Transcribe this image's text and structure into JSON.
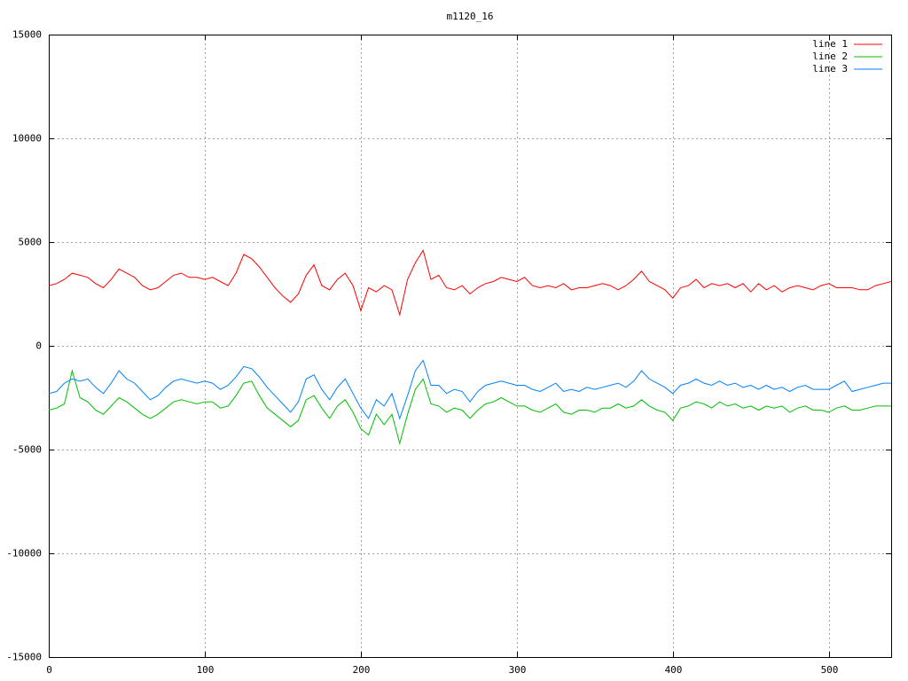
{
  "chart_data": {
    "type": "line",
    "title": "m1120_16",
    "x": [
      0,
      5,
      10,
      15,
      20,
      25,
      30,
      35,
      40,
      45,
      50,
      55,
      60,
      65,
      70,
      75,
      80,
      85,
      90,
      95,
      100,
      105,
      110,
      115,
      120,
      125,
      130,
      135,
      140,
      145,
      150,
      155,
      160,
      165,
      170,
      175,
      180,
      185,
      190,
      195,
      200,
      205,
      210,
      215,
      220,
      225,
      230,
      235,
      240,
      245,
      250,
      255,
      260,
      265,
      270,
      275,
      280,
      285,
      290,
      295,
      300,
      305,
      310,
      315,
      320,
      325,
      330,
      335,
      340,
      345,
      350,
      355,
      360,
      365,
      370,
      375,
      380,
      385,
      390,
      395,
      400,
      405,
      410,
      415,
      420,
      425,
      430,
      435,
      440,
      445,
      450,
      455,
      460,
      465,
      470,
      475,
      480,
      485,
      490,
      495,
      500,
      505,
      510,
      515,
      520,
      525,
      530,
      535,
      540
    ],
    "series": [
      {
        "name": "line 1",
        "color": "#ff0000",
        "values": [
          2900,
          3000,
          3200,
          3500,
          3400,
          3300,
          3000,
          2800,
          3200,
          3700,
          3500,
          3300,
          2900,
          2700,
          2800,
          3100,
          3400,
          3500,
          3300,
          3300,
          3200,
          3300,
          3100,
          2900,
          3500,
          4400,
          4200,
          3800,
          3300,
          2800,
          2400,
          2100,
          2500,
          3400,
          3900,
          2900,
          2700,
          3200,
          3500,
          2900,
          1700,
          2800,
          2600,
          2900,
          2700,
          1500,
          3200,
          4000,
          4600,
          3200,
          3400,
          2800,
          2700,
          2900,
          2500,
          2800,
          3000,
          3100,
          3300,
          3200,
          3100,
          3300,
          2900,
          2800,
          2900,
          2800,
          3000,
          2700,
          2800,
          2800,
          2900,
          3000,
          2900,
          2700,
          2900,
          3200,
          3600,
          3100,
          2900,
          2700,
          2300,
          2800,
          2900,
          3200,
          2800,
          3000,
          2900,
          3000,
          2800,
          3000,
          2600,
          3000,
          2700,
          2900,
          2600,
          2800,
          2900,
          2800,
          2700,
          2900,
          3000,
          2800,
          2800,
          2800,
          2700,
          2700,
          2900,
          3000,
          3100
        ]
      },
      {
        "name": "line 2",
        "color": "#00c000",
        "values": [
          -3100,
          -3000,
          -2800,
          -1200,
          -2500,
          -2700,
          -3100,
          -3300,
          -2900,
          -2500,
          -2700,
          -3000,
          -3300,
          -3500,
          -3300,
          -3000,
          -2700,
          -2600,
          -2700,
          -2800,
          -2700,
          -2700,
          -3000,
          -2900,
          -2400,
          -1800,
          -1700,
          -2400,
          -3000,
          -3300,
          -3600,
          -3900,
          -3600,
          -2600,
          -2400,
          -3000,
          -3500,
          -2900,
          -2600,
          -3200,
          -4000,
          -4300,
          -3300,
          -3800,
          -3300,
          -4700,
          -3300,
          -2100,
          -1600,
          -2800,
          -2900,
          -3200,
          -3000,
          -3100,
          -3500,
          -3100,
          -2800,
          -2700,
          -2500,
          -2700,
          -2900,
          -2900,
          -3100,
          -3200,
          -3000,
          -2800,
          -3200,
          -3300,
          -3100,
          -3100,
          -3200,
          -3000,
          -3000,
          -2800,
          -3000,
          -2900,
          -2600,
          -2900,
          -3100,
          -3200,
          -3600,
          -3000,
          -2900,
          -2700,
          -2800,
          -3000,
          -2700,
          -2900,
          -2800,
          -3000,
          -2900,
          -3100,
          -2900,
          -3000,
          -2900,
          -3200,
          -3000,
          -2900,
          -3100,
          -3100,
          -3200,
          -3000,
          -2900,
          -3100,
          -3100,
          -3000,
          -2900,
          -2900,
          -2900
        ]
      },
      {
        "name": "line 3",
        "color": "#0080ff",
        "values": [
          -2300,
          -2200,
          -1800,
          -1600,
          -1700,
          -1600,
          -2000,
          -2300,
          -1800,
          -1200,
          -1600,
          -1800,
          -2200,
          -2600,
          -2400,
          -2000,
          -1700,
          -1600,
          -1700,
          -1800,
          -1700,
          -1800,
          -2100,
          -1900,
          -1500,
          -1000,
          -1100,
          -1500,
          -2000,
          -2400,
          -2800,
          -3200,
          -2700,
          -1600,
          -1400,
          -2100,
          -2600,
          -2000,
          -1600,
          -2300,
          -3000,
          -3500,
          -2600,
          -2900,
          -2300,
          -3500,
          -2400,
          -1200,
          -700,
          -1900,
          -1900,
          -2300,
          -2100,
          -2200,
          -2700,
          -2200,
          -1900,
          -1800,
          -1700,
          -1800,
          -1900,
          -1900,
          -2100,
          -2200,
          -2000,
          -1800,
          -2200,
          -2100,
          -2200,
          -2000,
          -2100,
          -2000,
          -1900,
          -1800,
          -2000,
          -1700,
          -1200,
          -1600,
          -1800,
          -2000,
          -2300,
          -1900,
          -1800,
          -1600,
          -1800,
          -1900,
          -1700,
          -1900,
          -1800,
          -2000,
          -1900,
          -2100,
          -1900,
          -2100,
          -2000,
          -2200,
          -2000,
          -1900,
          -2100,
          -2100,
          -2100,
          -1900,
          -1700,
          -2200,
          -2100,
          -2000,
          -1900,
          -1800,
          -1800
        ]
      }
    ],
    "xlim": [
      0,
      540
    ],
    "xticks": [
      0,
      100,
      200,
      300,
      400,
      500
    ],
    "ylim": [
      -15000,
      15000
    ],
    "yticks": [
      -15000,
      -10000,
      -5000,
      0,
      5000,
      10000,
      15000
    ],
    "grid": true,
    "legend": "top-right"
  }
}
